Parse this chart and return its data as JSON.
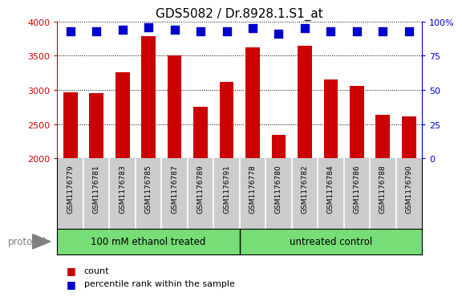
{
  "title": "GDS5082 / Dr.8928.1.S1_at",
  "samples": [
    "GSM1176779",
    "GSM1176781",
    "GSM1176783",
    "GSM1176785",
    "GSM1176787",
    "GSM1176789",
    "GSM1176791",
    "GSM1176778",
    "GSM1176780",
    "GSM1176782",
    "GSM1176784",
    "GSM1176786",
    "GSM1176788",
    "GSM1176790"
  ],
  "counts": [
    2970,
    2960,
    3260,
    3790,
    3500,
    2760,
    3120,
    3620,
    2340,
    3650,
    3150,
    3060,
    2640,
    2610
  ],
  "percentiles": [
    93,
    93,
    94,
    96,
    94,
    93,
    93,
    95,
    91,
    95,
    93,
    93,
    93,
    93
  ],
  "ylim_left": [
    2000,
    4000
  ],
  "ylim_right": [
    0,
    100
  ],
  "yticks_left": [
    2000,
    2500,
    3000,
    3500,
    4000
  ],
  "yticks_right": [
    0,
    25,
    50,
    75,
    100
  ],
  "ytick_labels_right": [
    "0",
    "25",
    "50",
    "75",
    "100%"
  ],
  "bar_color": "#cc0000",
  "dot_color": "#0000cc",
  "group1_label": "100 mM ethanol treated",
  "group2_label": "untreated control",
  "group1_count": 7,
  "group2_count": 7,
  "group_bg_color": "#77dd77",
  "sample_bg_color": "#cccccc",
  "protocol_label": "protocol",
  "legend_count_label": "count",
  "legend_percentile_label": "percentile rank within the sample",
  "title_fontsize": 11,
  "tick_fontsize": 8,
  "bar_width": 0.55,
  "dot_size": 45,
  "left_axis_color": "#cc0000",
  "right_axis_color": "#0000cc",
  "sample_label_fontsize": 6.5,
  "protocol_fontsize": 8.5,
  "legend_fontsize": 8
}
